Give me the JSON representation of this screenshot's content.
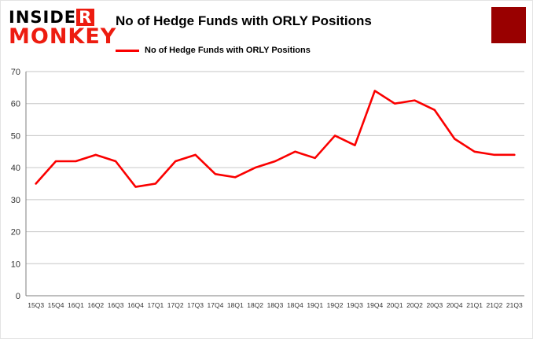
{
  "header": {
    "logo": {
      "line1_prefix": "INSIDE",
      "line1_r": "R",
      "line2": "MONKEY"
    },
    "title": "No of Hedge Funds with ORLY Positions"
  },
  "legend": {
    "label": "No of Hedge Funds with ORLY Positions"
  },
  "colors": {
    "series": "#fa0000",
    "logo_red": "#ed1c10",
    "corner_block": "#990000",
    "grid": "#c6c6c6",
    "axis": "#7f7f7f",
    "tick_text": "#333333"
  },
  "chart_data": {
    "type": "line",
    "title": "No of Hedge Funds with ORLY Positions",
    "categories": [
      "15Q3",
      "15Q4",
      "16Q1",
      "16Q2",
      "16Q3",
      "16Q4",
      "17Q1",
      "17Q2",
      "17Q3",
      "17Q4",
      "18Q1",
      "18Q2",
      "18Q3",
      "18Q4",
      "19Q1",
      "19Q2",
      "19Q3",
      "19Q4",
      "20Q1",
      "20Q2",
      "20Q3",
      "20Q4",
      "21Q1",
      "21Q2",
      "21Q3"
    ],
    "series": [
      {
        "name": "No of Hedge Funds with ORLY Positions",
        "values": [
          35,
          42,
          42,
          44,
          42,
          34,
          35,
          42,
          44,
          38,
          37,
          40,
          42,
          45,
          43,
          50,
          47,
          64,
          60,
          61,
          58,
          49,
          45,
          44,
          44
        ]
      }
    ],
    "xlabel": "",
    "ylabel": "",
    "ylim": [
      0,
      70
    ],
    "ytick_step": 10,
    "grid": "horizontal",
    "legend_position": "top-left"
  }
}
